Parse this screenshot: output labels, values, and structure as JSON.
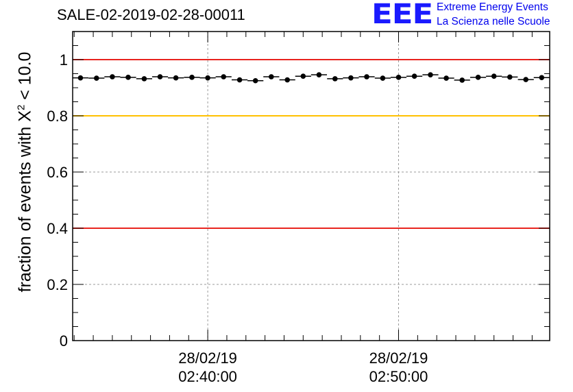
{
  "title": "SALE-02-2019-02-28-00011",
  "logo": {
    "letters": "EEE",
    "line1": "Extreme Energy Events",
    "line2": "La Scienza nelle Scuole"
  },
  "axis": {
    "ylabel_text": "fraction of events with X",
    "ylabel_sup": "2",
    "ylabel_tail": " < 10.0"
  },
  "chart_data": {
    "type": "scatter",
    "title": "SALE-02-2019-02-28-00011",
    "ylabel": "fraction of events with X² < 10.0",
    "ylim": [
      0,
      1.1
    ],
    "yticks": [
      0,
      0.2,
      0.4,
      0.6,
      0.8,
      1
    ],
    "ytick_labels": [
      "0",
      "0.2",
      "0.4",
      "0.6",
      "0.8",
      "1"
    ],
    "xlim_minutes": [
      32.92,
      57.92
    ],
    "xticks": [
      {
        "minutes": 40,
        "date": "28/02/19",
        "time": "02:40:00"
      },
      {
        "minutes": 50,
        "date": "28/02/19",
        "time": "02:50:00"
      }
    ],
    "grid": true,
    "reference_lines": [
      {
        "y": 1.0,
        "color": "#e8231e"
      },
      {
        "y": 0.8,
        "color": "#ffc000"
      },
      {
        "y": 0.4,
        "color": "#e8231e"
      }
    ],
    "x_minutes": [
      33.33,
      34.17,
      35.0,
      35.83,
      36.67,
      37.5,
      38.33,
      39.17,
      40.0,
      40.83,
      41.67,
      42.5,
      43.33,
      44.17,
      45.0,
      45.83,
      46.67,
      47.5,
      48.33,
      49.17,
      50.0,
      50.83,
      51.67,
      52.5,
      53.33,
      54.17,
      55.0,
      55.83,
      56.67,
      57.5
    ],
    "values": [
      0.935,
      0.934,
      0.939,
      0.937,
      0.932,
      0.939,
      0.935,
      0.937,
      0.935,
      0.939,
      0.928,
      0.925,
      0.939,
      0.928,
      0.941,
      0.946,
      0.932,
      0.935,
      0.939,
      0.934,
      0.937,
      0.941,
      0.946,
      0.934,
      0.927,
      0.937,
      0.941,
      0.938,
      0.929,
      0.936
    ],
    "point_color": "#000000"
  }
}
